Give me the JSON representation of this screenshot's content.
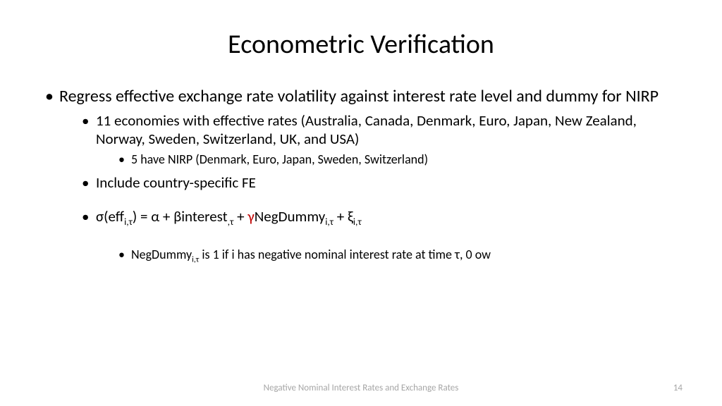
{
  "title": "Econometric Verification",
  "bullets": {
    "b1": "Regress effective exchange rate volatility against interest rate level and dummy for NIRP",
    "b1a": "11 economies with effective rates (Australia, Canada, Denmark, Euro, Japan, New Zealand, Norway, Sweden, Switzerland, UK, and USA)",
    "b1a1": "5 have NIRP (Denmark, Euro, Japan, Sweden, Switzerland)",
    "b1b": "Include country-specific FE",
    "eq_pre": "σ(eff",
    "eq_sub1": "i,τ",
    "eq_mid1": ") = α + βinterest",
    "eq_sub2": ",τ",
    "eq_mid2": " + ",
    "eq_gamma": "γ",
    "eq_mid3": "NegDummy",
    "eq_sub3": "i,τ",
    "eq_mid4": " + ξ",
    "eq_sub4": "i,τ",
    "b1c1_pre": "NegDummy",
    "b1c1_sub": "i,τ",
    "b1c1_post": " is 1 if i has negative nominal interest rate at time τ, 0 ow"
  },
  "footer": "Negative Nominal Interest Rates and Exchange Rates",
  "page": "14",
  "colors": {
    "gamma": "#c00000",
    "footer": "#a6a6a6",
    "text": "#000000",
    "bg": "#ffffff"
  },
  "fonts": {
    "title_size": 38,
    "l1_size": 24,
    "l2_size": 21,
    "l3_size": 18,
    "footer_size": 13
  }
}
